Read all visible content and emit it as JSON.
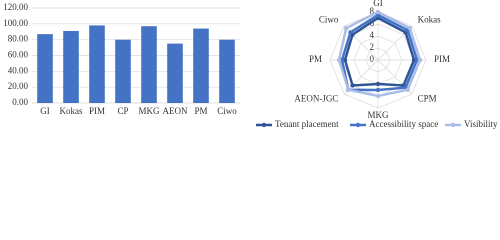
{
  "chart_data": [
    {
      "type": "bar",
      "categories": [
        "GI",
        "Kokas",
        "PIM",
        "CP",
        "MKG",
        "AEON",
        "PM",
        "Ciwo"
      ],
      "values": [
        87,
        91,
        98,
        80,
        97,
        75,
        94,
        80
      ],
      "color": "#4472c4",
      "ylim": [
        0,
        120
      ],
      "yticks": [
        {
          "value": 0,
          "label": "0.00"
        },
        {
          "value": 20,
          "label": "20.00"
        },
        {
          "value": 40,
          "label": "40.00"
        },
        {
          "value": 60,
          "label": "60.00"
        },
        {
          "value": 80,
          "label": "80.00"
        },
        {
          "value": 100,
          "label": "100.00"
        },
        {
          "value": 120,
          "label": "120.00"
        }
      ],
      "grid": true
    },
    {
      "type": "radar",
      "categories": [
        "GI",
        "Kokas",
        "PIM",
        "CPM",
        "MKG",
        "AEON-JGC",
        "PM",
        "Ciwo"
      ],
      "rlim": [
        0,
        8
      ],
      "rticks": [
        0,
        2,
        4,
        6,
        8
      ],
      "grid": true,
      "legend": "bottom",
      "series": [
        {
          "name": "Tenant placement",
          "color": "#2f5597",
          "values": [
            7,
            6.5,
            6,
            6,
            4,
            6,
            5.5,
            6
          ]
        },
        {
          "name": "Accessibility space",
          "color": "#4472c4",
          "values": [
            7.5,
            7,
            6.5,
            6.5,
            5,
            7,
            6,
            6.5
          ]
        },
        {
          "name": "Visibility",
          "color": "#a9bde6",
          "values": [
            8,
            7.5,
            7,
            7,
            6,
            7,
            6.5,
            7.5
          ]
        }
      ]
    }
  ]
}
